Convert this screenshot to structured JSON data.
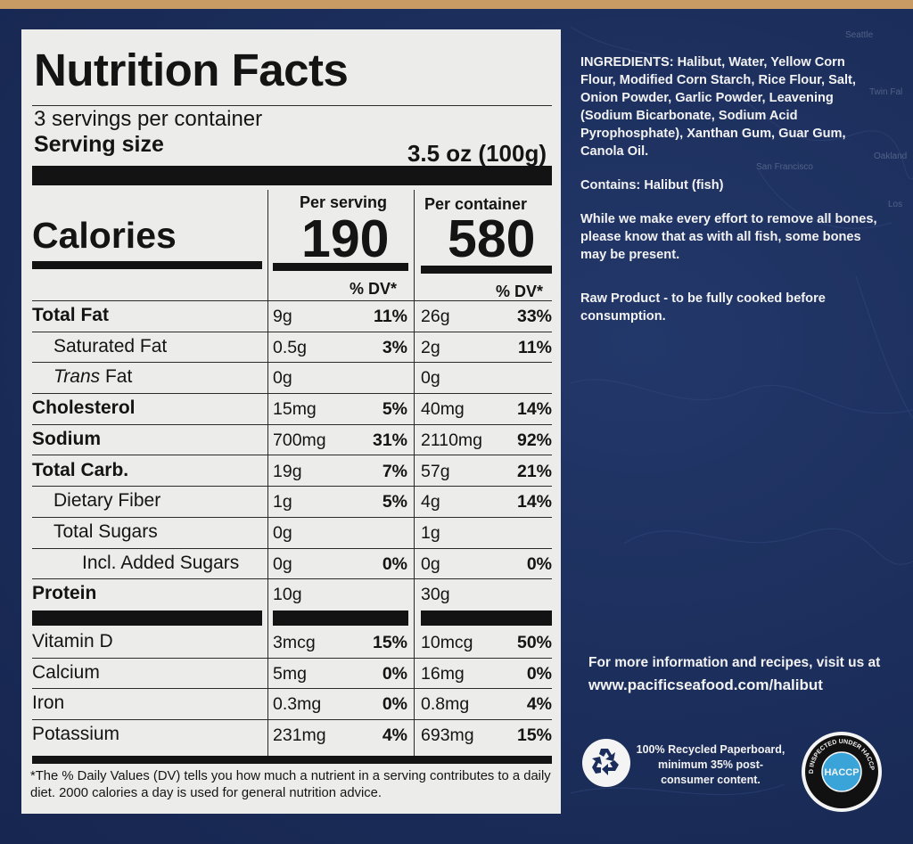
{
  "panel": {
    "title": "Nutrition Facts",
    "servings_per_container": "3 servings per container",
    "serving_size_label": "Serving size",
    "serving_size_value": "3.5 oz (100g)",
    "calories_label": "Calories",
    "per_serving_label": "Per serving",
    "per_container_label": "Per container",
    "calories_per_serving": "190",
    "calories_per_container": "580",
    "dv_label": "% DV*",
    "nutrients": [
      {
        "name": "Total Fat",
        "style": "bold",
        "indent": 0,
        "serving": "9g",
        "serving_dv": "11%",
        "container": "26g",
        "container_dv": "33%"
      },
      {
        "name": "Saturated Fat",
        "style": "normal",
        "indent": 1,
        "serving": "0.5g",
        "serving_dv": "3%",
        "container": "2g",
        "container_dv": "11%"
      },
      {
        "name": "Trans Fat",
        "style": "trans",
        "indent": 1,
        "serving": "0g",
        "serving_dv": "",
        "container": "0g",
        "container_dv": ""
      },
      {
        "name": "Cholesterol",
        "style": "bold",
        "indent": 0,
        "serving": "15mg",
        "serving_dv": "5%",
        "container": "40mg",
        "container_dv": "14%"
      },
      {
        "name": "Sodium",
        "style": "bold",
        "indent": 0,
        "serving": "700mg",
        "serving_dv": "31%",
        "container": "2110mg",
        "container_dv": "92%"
      },
      {
        "name": "Total Carb.",
        "style": "bold",
        "indent": 0,
        "serving": "19g",
        "serving_dv": "7%",
        "container": "57g",
        "container_dv": "21%"
      },
      {
        "name": "Dietary Fiber",
        "style": "normal",
        "indent": 1,
        "serving": "1g",
        "serving_dv": "5%",
        "container": "4g",
        "container_dv": "14%"
      },
      {
        "name": "Total Sugars",
        "style": "normal",
        "indent": 1,
        "serving": "0g",
        "serving_dv": "",
        "container": "1g",
        "container_dv": ""
      },
      {
        "name": "Incl. Added Sugars",
        "style": "normal",
        "indent": 2,
        "serving": "0g",
        "serving_dv": "0%",
        "container": "0g",
        "container_dv": "0%"
      },
      {
        "name": "Protein",
        "style": "bold",
        "indent": 0,
        "serving": "10g",
        "serving_dv": "",
        "container": "30g",
        "container_dv": ""
      }
    ],
    "vitamins": [
      {
        "name": "Vitamin D",
        "serving": "3mcg",
        "serving_dv": "15%",
        "container": "10mcg",
        "container_dv": "50%"
      },
      {
        "name": "Calcium",
        "serving": "5mg",
        "serving_dv": "0%",
        "container": "16mg",
        "container_dv": "0%"
      },
      {
        "name": "Iron",
        "serving": "0.3mg",
        "serving_dv": "0%",
        "container": "0.8mg",
        "container_dv": "4%"
      },
      {
        "name": "Potassium",
        "serving": "231mg",
        "serving_dv": "4%",
        "container": "693mg",
        "container_dv": "15%"
      }
    ],
    "footnote": "*The % Daily Values (DV) tells you how much a nutrient in a serving contributes to a daily diet. 2000 calories a day is used for general nutrition advice."
  },
  "right": {
    "ingredients": "INGREDIENTS: Halibut, Water, Yellow Corn Flour, Modified Corn Starch, Rice Flour, Salt, Onion Powder, Garlic Powder, Leavening (Sodium Bicarbonate, Sodium Acid Pyrophosphate), Xanthan Gum, Guar Gum, Canola Oil.",
    "contains": "Contains: Halibut (fish)",
    "bones": "While we make every effort to remove all bones, please know that as with all fish, some bones may be present.",
    "raw": "Raw Product - to be fully cooked before consumption.",
    "info": "For more information and recipes, visit us at",
    "url": "www.pacificseafood.com/halibut",
    "recycle": "100% Recycled Paperboard, minimum 35% post-consumer content.",
    "haccp_seal_text": "PACKED AND INSPECTED UNDER HACCP GUIDELINES",
    "haccp_center": "HACCP"
  },
  "map_labels": [
    "Seattle",
    "Twin Fal",
    "Oakland",
    "San Francisco",
    "Los"
  ],
  "colors": {
    "box_blue": "#1b2d5a",
    "panel_bg": "#ecedea",
    "ink": "#131313",
    "haccp_blue": "#3aa3d8"
  },
  "icons": [
    "recycle-icon",
    "haccp-seal"
  ]
}
